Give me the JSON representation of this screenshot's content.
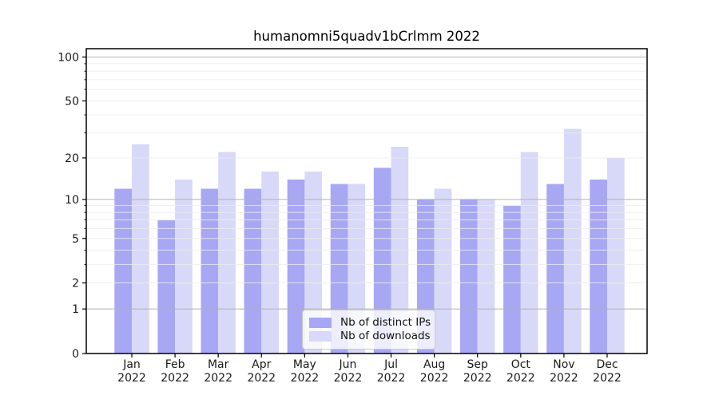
{
  "chart_data": {
    "type": "bar",
    "title": "humanomni5quadv1bCrlmm 2022",
    "categories": [
      "Jan",
      "Feb",
      "Mar",
      "Apr",
      "May",
      "Jun",
      "Jul",
      "Aug",
      "Sep",
      "Oct",
      "Nov",
      "Dec"
    ],
    "category_year": "2022",
    "series": [
      {
        "id": "distinct-ips",
        "name": "Nb of distinct IPs",
        "color": "#a7a7f3",
        "values": [
          12,
          7,
          12,
          12,
          14,
          13,
          17,
          10,
          10,
          9,
          13,
          14
        ]
      },
      {
        "id": "downloads",
        "name": "Nb of downloads",
        "color": "#d8d8f8",
        "values": [
          25,
          14,
          22,
          16,
          16,
          13,
          24,
          12,
          10,
          22,
          32,
          20
        ]
      }
    ],
    "y_scale": "log1p",
    "ylim": [
      0,
      114
    ],
    "y_ticks": [
      0,
      1,
      2,
      5,
      10,
      20,
      50,
      100
    ],
    "y_major_gridlines": [
      1,
      10,
      100
    ],
    "y_minor_gridlines": [
      2,
      3,
      4,
      5,
      6,
      7,
      8,
      9,
      20,
      30,
      40,
      50,
      60,
      70,
      80,
      90
    ],
    "grid": {
      "major_color": "#b3b3b3",
      "minor_color": "#ececec"
    },
    "axis_color": "#000000",
    "tick_label_color": "#1a1a1a",
    "legend_position": "bottom-center",
    "legend_labels": [
      "Nb of distinct IPs",
      "Nb of downloads"
    ]
  }
}
